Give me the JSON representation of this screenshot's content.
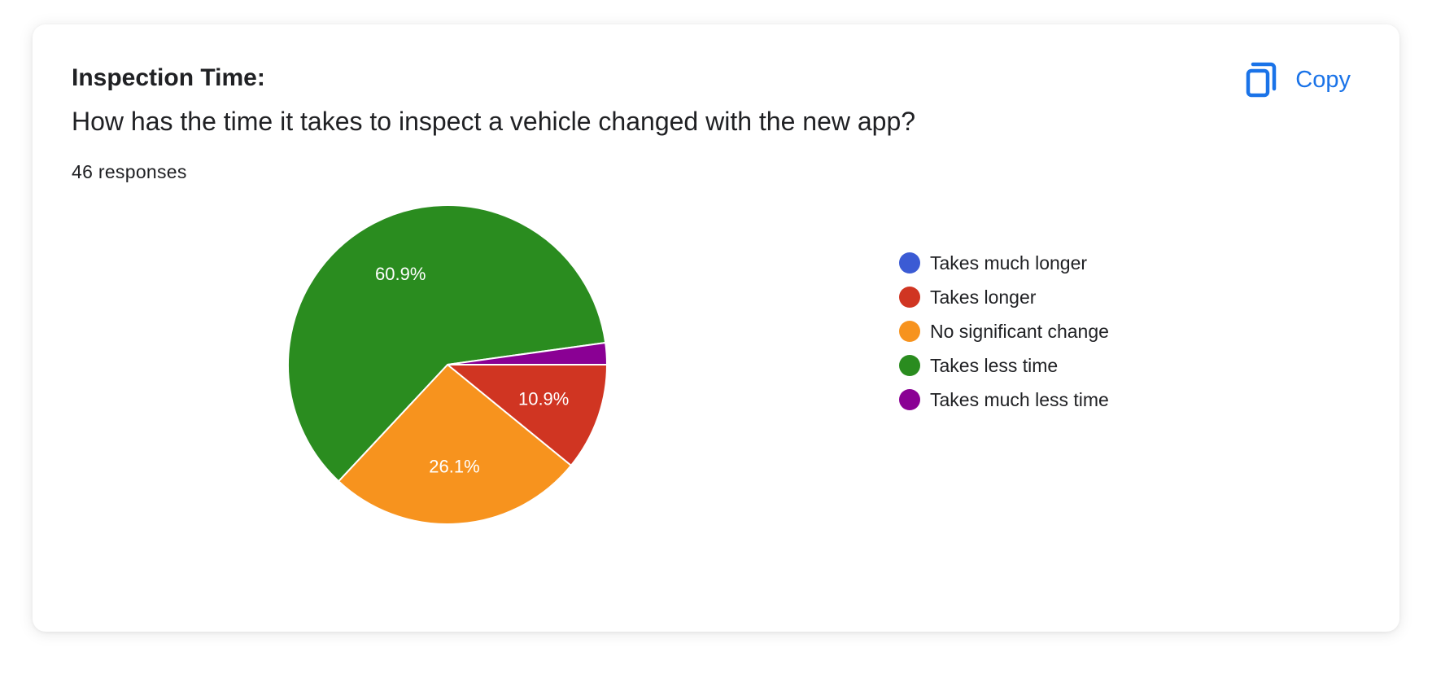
{
  "card": {
    "title": "Inspection Time:",
    "question": "How has the time it takes to inspect a vehicle changed with the new app?",
    "responses": "46 responses"
  },
  "copy_button": {
    "label": "Copy",
    "icon": "copy-icon",
    "color": "#1a73e8"
  },
  "chart_data": {
    "type": "pie",
    "title": "",
    "total_responses": 46,
    "legend_position": "right",
    "slices": [
      {
        "name": "Takes much longer",
        "value": 0.0,
        "color": "#3b5bd4",
        "label": ""
      },
      {
        "name": "Takes longer",
        "value": 10.9,
        "color": "#d03522",
        "label": "10.9%"
      },
      {
        "name": "No significant change",
        "value": 26.1,
        "color": "#f7931e",
        "label": "26.1%"
      },
      {
        "name": "Takes less time",
        "value": 60.9,
        "color": "#2a8c1f",
        "label": "60.9%"
      },
      {
        "name": "Takes much less time",
        "value": 2.2,
        "color": "#8a0094",
        "label": ""
      }
    ]
  }
}
